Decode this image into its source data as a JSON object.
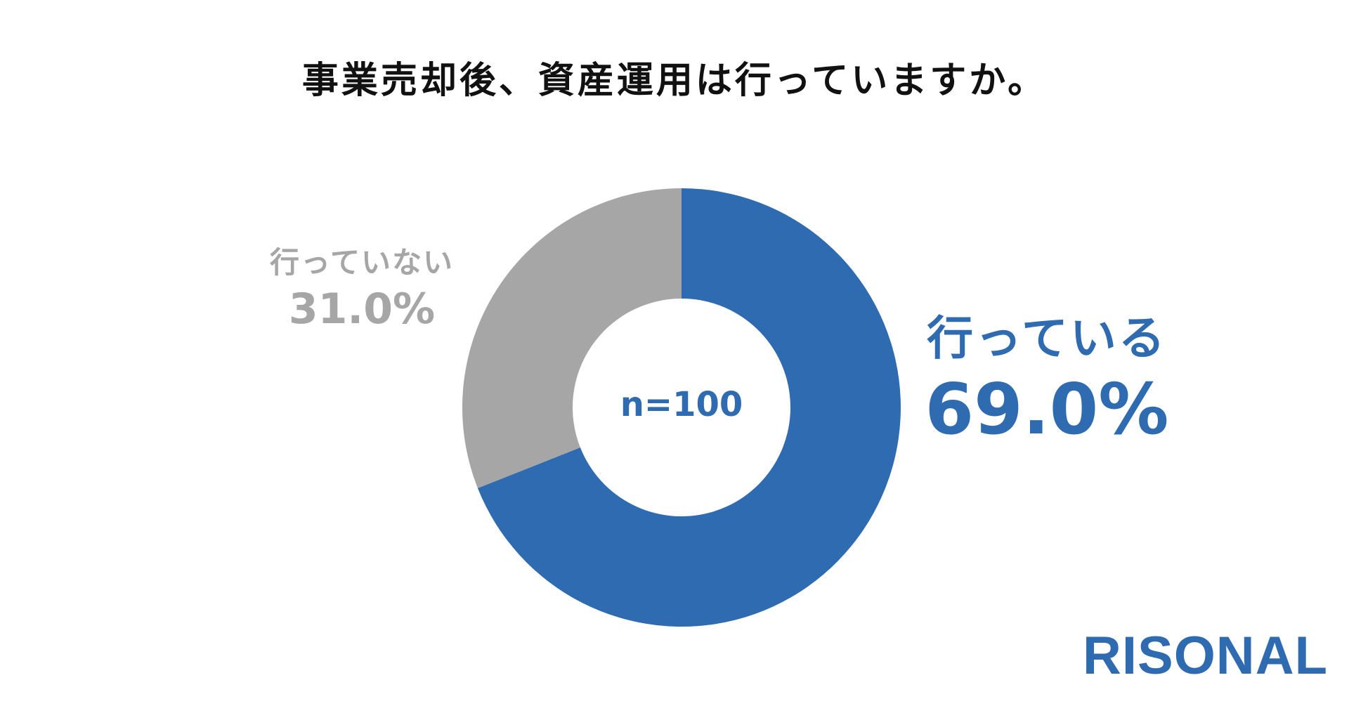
{
  "title": "事業売却後、資産運用は行っていますか。",
  "center_label": "n=100",
  "logo_text": "RISONAL",
  "colors": {
    "blue": "#2E6BB1",
    "gray": "#A6A6A6",
    "title": "#111111"
  },
  "chart_data": {
    "type": "pie",
    "donut": true,
    "title": "事業売却後、資産運用は行っていますか。",
    "sample": "n=100",
    "start": "top",
    "direction": "clockwise",
    "slices": [
      {
        "label": "行っている",
        "value": 69.0,
        "display": "69.0%",
        "color": "#2E6BB1"
      },
      {
        "label": "行っていない",
        "value": 31.0,
        "display": "31.0%",
        "color": "#A6A6A6"
      }
    ]
  }
}
